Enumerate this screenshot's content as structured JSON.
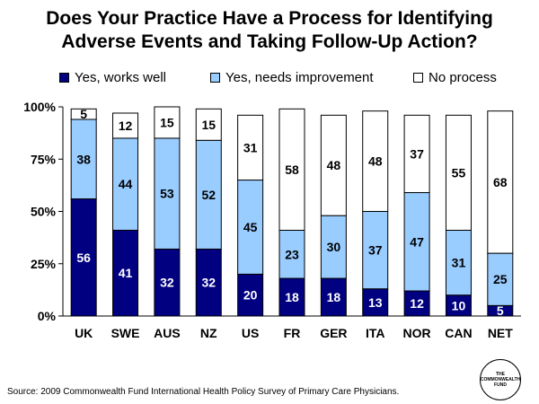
{
  "title_line1": "Does Your Practice Have a Process for Identifying",
  "title_line2": "Adverse Events and Taking Follow-Up Action?",
  "source": "Source: 2009 Commonwealth Fund International Health Policy Survey of Primary Care Physicians.",
  "logo_text": "THE COMMONWEALTH FUND",
  "colors": {
    "series1": "#000080",
    "series2": "#99CCFF",
    "series3": "#FFFFFF"
  },
  "chart_data": {
    "type": "bar",
    "stacked": true,
    "categories": [
      "UK",
      "SWE",
      "AUS",
      "NZ",
      "US",
      "FR",
      "GER",
      "ITA",
      "NOR",
      "CAN",
      "NET"
    ],
    "series": [
      {
        "name": "Yes, works well",
        "values": [
          56,
          41,
          32,
          32,
          20,
          18,
          18,
          13,
          12,
          10,
          5
        ]
      },
      {
        "name": "Yes, needs improvement",
        "values": [
          38,
          44,
          53,
          52,
          45,
          23,
          30,
          37,
          47,
          31,
          25
        ]
      },
      {
        "name": "No process",
        "values": [
          5,
          12,
          15,
          15,
          31,
          58,
          48,
          48,
          37,
          55,
          68
        ]
      }
    ],
    "yticks": [
      "0%",
      "25%",
      "50%",
      "75%",
      "100%"
    ],
    "ylim": [
      0,
      100
    ],
    "grid": false,
    "legend": "top"
  }
}
